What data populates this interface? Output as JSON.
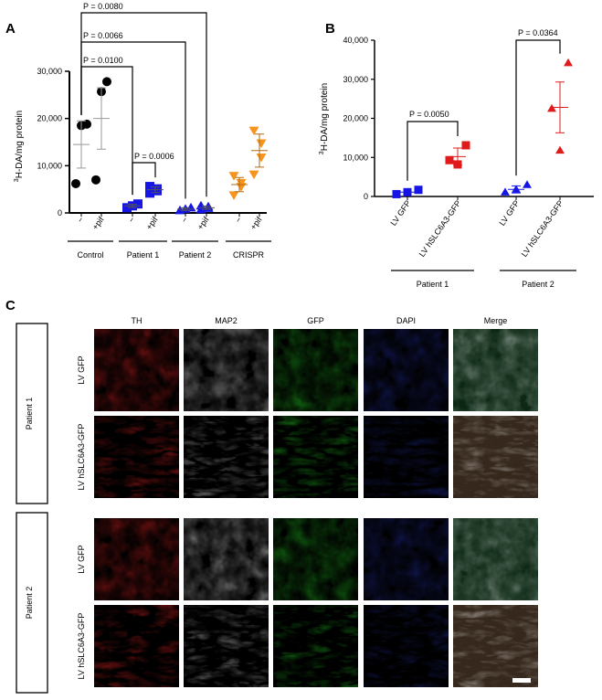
{
  "panels": {
    "a": "A",
    "b": "B",
    "c": "C"
  },
  "chart_data": [
    {
      "type": "scatter",
      "ylabel_sup": "3",
      "ylabel_main": "H-DA/mg protein",
      "ylim": [
        0,
        30000
      ],
      "yticks": [
        {
          "v": 0,
          "label": "0"
        },
        {
          "v": 10000,
          "label": "10,000"
        },
        {
          "v": 20000,
          "label": "20,000"
        },
        {
          "v": 30000,
          "label": "30,000"
        }
      ],
      "groups": [
        {
          "name": "Control",
          "color": "#000000",
          "marker": "circle",
          "conditions": [
            {
              "label": "−",
              "values": [
                6200,
                18500,
                18800
              ],
              "mean": 14500,
              "sd": 5000
            },
            {
              "label": "+pif",
              "values": [
                7000,
                25700,
                27800
              ],
              "mean": 20000,
              "sd": 6500
            }
          ]
        },
        {
          "name": "Patient 1",
          "color": "#1515e6",
          "marker": "square",
          "conditions": [
            {
              "label": "−",
              "values": [
                1100,
                1500,
                1900
              ],
              "mean": 1500,
              "sd": 350
            },
            {
              "label": "+pif",
              "values": [
                4200,
                4700,
                5100,
                5600
              ],
              "mean": 4900,
              "sd": 600
            }
          ]
        },
        {
          "name": "Patient 2",
          "color": "#1515e6",
          "marker": "triangle",
          "conditions": [
            {
              "label": "−",
              "values": [
                500,
                800,
                1100
              ],
              "mean": 800,
              "sd": 300
            },
            {
              "label": "+pif",
              "values": [
                700,
                1000,
                1300,
                1500
              ],
              "mean": 1100,
              "sd": 350
            }
          ]
        },
        {
          "name": "CRISPR",
          "color": "#f7941d",
          "marker": "triangle-down",
          "conditions": [
            {
              "label": "−",
              "values": [
                3800,
                5600,
                6400,
                7900
              ],
              "mean": 6000,
              "sd": 1500
            },
            {
              "label": "+pif",
              "values": [
                8200,
                11800,
                14800,
                17500
              ],
              "mean": 13200,
              "sd": 3500
            }
          ]
        }
      ],
      "pvalues": [
        {
          "label": "P = 0.0080",
          "from": 0,
          "to": 5
        },
        {
          "label": "P = 0.0066",
          "from": 0,
          "to": 4
        },
        {
          "label": "P = 0.0100",
          "from": 0,
          "to": 2
        },
        {
          "label": "P = 0.0006",
          "from": 2,
          "to": 3
        }
      ]
    },
    {
      "type": "scatter",
      "ylabel_sup": "3",
      "ylabel_main": "H-DA/mg protein",
      "ylim": [
        0,
        40000
      ],
      "yticks": [
        {
          "v": 0,
          "label": "0"
        },
        {
          "v": 10000,
          "label": "10,000"
        },
        {
          "v": 20000,
          "label": "20,000"
        },
        {
          "v": 30000,
          "label": "30,000"
        },
        {
          "v": 40000,
          "label": "40,000"
        }
      ],
      "groups": [
        {
          "name": "Patient 1",
          "color": "#1515e6",
          "marker": "square",
          "conditions": [
            {
              "label": "LV GFP",
              "values": [
                600,
                1100,
                1700
              ],
              "mean": 1100,
              "sd": 0
            },
            {
              "label": "LV hSLC6A3-GFP",
              "values": [
                8200,
                9300,
                13100
              ],
              "mean": 10200,
              "sd": 2200,
              "color": "#e01b1b"
            }
          ]
        },
        {
          "name": "Patient 2",
          "color": "#1515e6",
          "marker": "triangle",
          "conditions": [
            {
              "label": "LV GFP",
              "values": [
                1100,
                1800,
                3000
              ],
              "mean": 1800,
              "sd": 900
            },
            {
              "label": "LV hSLC6A3-GFP",
              "values": [
                11800,
                22500,
                34200
              ],
              "mean": 22800,
              "sd": 6500,
              "color": "#e01b1b"
            }
          ]
        }
      ],
      "pvalues": [
        {
          "label": "P = 0.0050",
          "from": 0,
          "to": 1
        },
        {
          "label": "P = 0.0364",
          "from": 2,
          "to": 3
        }
      ]
    }
  ],
  "imaging": {
    "channels": [
      {
        "label": "TH",
        "color": "#e02020"
      },
      {
        "label": "MAP2",
        "color": "#e6e6e6"
      },
      {
        "label": "GFP",
        "color": "#20c020"
      },
      {
        "label": "DAPI",
        "color": "#2a3ad0"
      },
      {
        "label": "Merge",
        "color": "#cccccc"
      }
    ],
    "patients": [
      {
        "label": "Patient 1",
        "rows": [
          "LV GFP",
          "LV hSLC6A3-GFP"
        ]
      },
      {
        "label": "Patient 2",
        "rows": [
          "LV GFP",
          "LV hSLC6A3-GFP"
        ]
      }
    ]
  }
}
